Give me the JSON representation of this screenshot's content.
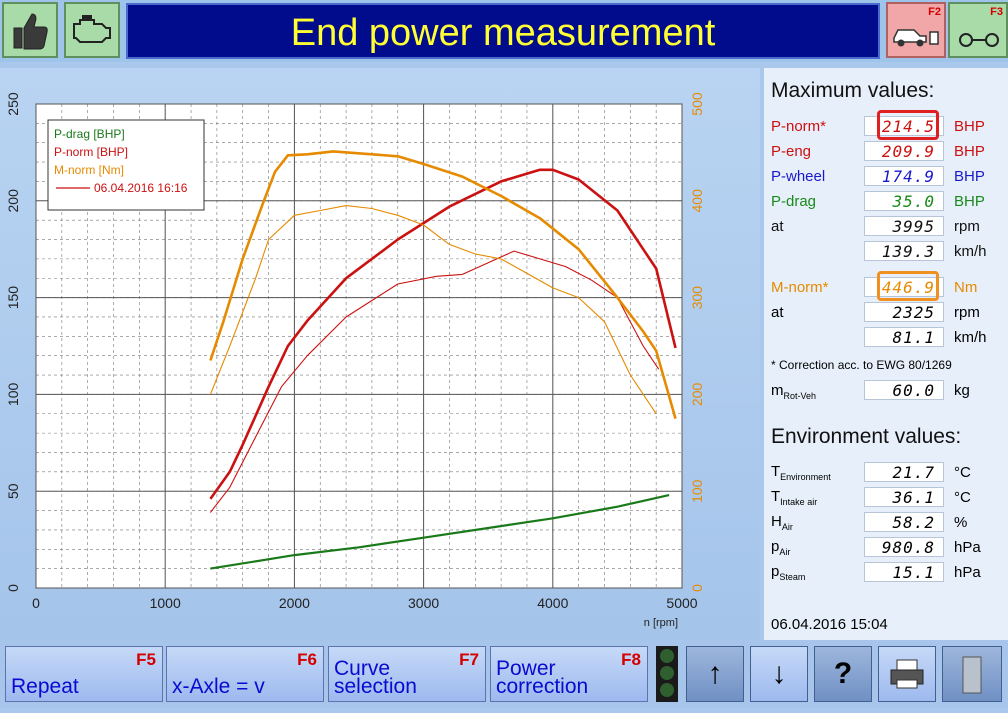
{
  "header": {
    "title": "End power measurement",
    "f2_label": "F2",
    "f3_label": "F3",
    "thumbs_icon": "thumbs-up-icon",
    "engine_icon": "engine-icon"
  },
  "chart_data": {
    "type": "line",
    "x_axis": {
      "ticks": [
        "0",
        "1000",
        "2000",
        "3000",
        "4000",
        "5000"
      ],
      "unit_label": "n [rpm]",
      "range": [
        0,
        5000
      ]
    },
    "y_left": {
      "ticks": [
        "0",
        "50",
        "100",
        "150",
        "200",
        "250"
      ],
      "range": [
        0,
        250
      ]
    },
    "y_right": {
      "ticks": [
        "0",
        "100",
        "200",
        "300",
        "400",
        "500"
      ],
      "range": [
        0,
        500
      ]
    },
    "grid": true,
    "legend_placement": "top-left",
    "legend": [
      {
        "label": "P-drag [BHP]",
        "color": "#1a7a1a"
      },
      {
        "label": "P-norm [BHP]",
        "color": "#cc1111"
      },
      {
        "label": "M-norm [Nm]",
        "color": "#e68a00"
      },
      {
        "label": "06.04.2016 16:16",
        "color": "#cc1111"
      }
    ],
    "series": [
      {
        "name": "P-drag [BHP]",
        "color": "#1a7a1a",
        "width": 2.2,
        "axis": "left",
        "points": [
          [
            1350,
            10
          ],
          [
            2000,
            17
          ],
          [
            2500,
            21
          ],
          [
            3000,
            26
          ],
          [
            3500,
            31
          ],
          [
            4000,
            36
          ],
          [
            4500,
            42
          ],
          [
            4900,
            48
          ]
        ]
      },
      {
        "name": "P-norm [BHP]",
        "color": "#cc1111",
        "width": 2.6,
        "axis": "left",
        "points": [
          [
            1350,
            46
          ],
          [
            1500,
            60
          ],
          [
            1600,
            74
          ],
          [
            1800,
            104
          ],
          [
            1950,
            125
          ],
          [
            2100,
            138
          ],
          [
            2400,
            160
          ],
          [
            2800,
            180
          ],
          [
            3200,
            197
          ],
          [
            3600,
            210
          ],
          [
            3900,
            216
          ],
          [
            4000,
            216
          ],
          [
            4200,
            211
          ],
          [
            4500,
            195
          ],
          [
            4700,
            175
          ],
          [
            4800,
            165
          ],
          [
            4950,
            124
          ]
        ]
      },
      {
        "name": "P-norm 06.04.2016 16:16",
        "color": "#cc1111",
        "width": 1.1,
        "axis": "left",
        "points": [
          [
            1350,
            39
          ],
          [
            1500,
            52
          ],
          [
            1700,
            78
          ],
          [
            1900,
            104
          ],
          [
            2100,
            120
          ],
          [
            2400,
            140
          ],
          [
            2800,
            157
          ],
          [
            3100,
            161
          ],
          [
            3300,
            162
          ],
          [
            3500,
            168
          ],
          [
            3700,
            174
          ],
          [
            3900,
            170
          ],
          [
            4100,
            166
          ],
          [
            4300,
            159
          ],
          [
            4500,
            150
          ],
          [
            4700,
            125
          ],
          [
            4820,
            113
          ]
        ]
      },
      {
        "name": "M-norm [Nm]",
        "color": "#e68a00",
        "width": 2.6,
        "axis": "right",
        "points": [
          [
            1350,
            235
          ],
          [
            1450,
            275
          ],
          [
            1600,
            340
          ],
          [
            1750,
            395
          ],
          [
            1850,
            430
          ],
          [
            1950,
            447
          ],
          [
            2100,
            448
          ],
          [
            2300,
            451
          ],
          [
            2600,
            448
          ],
          [
            2800,
            446
          ],
          [
            3000,
            438
          ],
          [
            3300,
            425
          ],
          [
            3600,
            405
          ],
          [
            3900,
            382
          ],
          [
            4200,
            350
          ],
          [
            4500,
            300
          ],
          [
            4700,
            265
          ],
          [
            4800,
            245
          ],
          [
            4950,
            175
          ]
        ]
      },
      {
        "name": "M-norm 06.04.2016 16:16",
        "color": "#e68a00",
        "width": 1.1,
        "axis": "right",
        "points": [
          [
            1350,
            200
          ],
          [
            1500,
            250
          ],
          [
            1700,
            320
          ],
          [
            1800,
            360
          ],
          [
            2000,
            385
          ],
          [
            2200,
            390
          ],
          [
            2400,
            395
          ],
          [
            2600,
            392
          ],
          [
            2800,
            385
          ],
          [
            3000,
            375
          ],
          [
            3200,
            355
          ],
          [
            3400,
            345
          ],
          [
            3600,
            340
          ],
          [
            3800,
            325
          ],
          [
            4000,
            310
          ],
          [
            4200,
            300
          ],
          [
            4400,
            275
          ],
          [
            4600,
            220
          ],
          [
            4800,
            180
          ]
        ]
      }
    ]
  },
  "max_values": {
    "heading": "Maximum values:",
    "rows": [
      {
        "label": "P-norm*",
        "value": "214.5",
        "unit": "BHP",
        "color": "#cc1111"
      },
      {
        "label": "P-eng",
        "value": "209.9",
        "unit": "BHP",
        "color": "#cc1111"
      },
      {
        "label": "P-wheel",
        "value": "174.9",
        "unit": "BHP",
        "color": "#1a1acc"
      },
      {
        "label": "P-drag",
        "value": "35.0",
        "unit": "BHP",
        "color": "#1a8a1a"
      },
      {
        "label": "at",
        "value": "3995",
        "unit": "rpm",
        "color": "#111111"
      },
      {
        "label": "",
        "value": "139.3",
        "unit": "km/h",
        "color": "#111111"
      }
    ],
    "mnorm": {
      "label": "M-norm*",
      "value": "446.9",
      "unit": "Nm"
    },
    "mnorm_rpm": {
      "label": "at",
      "value": "2325",
      "unit": "rpm"
    },
    "mnorm_speed": {
      "value": "81.1",
      "unit": "km/h"
    },
    "correction": "* Correction acc. to EWG 80/1269",
    "mass": {
      "label": "m",
      "sub": "Rot-Veh",
      "value": "60.0",
      "unit": "kg"
    }
  },
  "environment": {
    "heading": "Environment values:",
    "rows": [
      {
        "label": "T",
        "sub": "Environment",
        "value": "21.7",
        "unit": "°C"
      },
      {
        "label": "T",
        "sub": "Intake air",
        "value": "36.1",
        "unit": "°C"
      },
      {
        "label": "H",
        "sub": "Air",
        "value": "58.2",
        "unit": "%"
      },
      {
        "label": "p",
        "sub": "Air",
        "value": "980.8",
        "unit": "hPa"
      },
      {
        "label": "p",
        "sub": "Steam",
        "value": "15.1",
        "unit": "hPa"
      }
    ],
    "datetime": "06.04.2016   15:04"
  },
  "bottom": {
    "repeat": {
      "label": "Repeat",
      "key": "F5"
    },
    "xaxle": {
      "label": "x-Axle = v",
      "key": "F6"
    },
    "curve": {
      "line1": "Curve",
      "line2": "selection",
      "key": "F7"
    },
    "power": {
      "line1": "Power",
      "line2": "correction",
      "key": "F8"
    },
    "icons": [
      "traffic-light-icon",
      "arrow-up-icon",
      "arrow-down-icon",
      "help-icon",
      "printer-icon",
      "door-exit-icon"
    ]
  }
}
